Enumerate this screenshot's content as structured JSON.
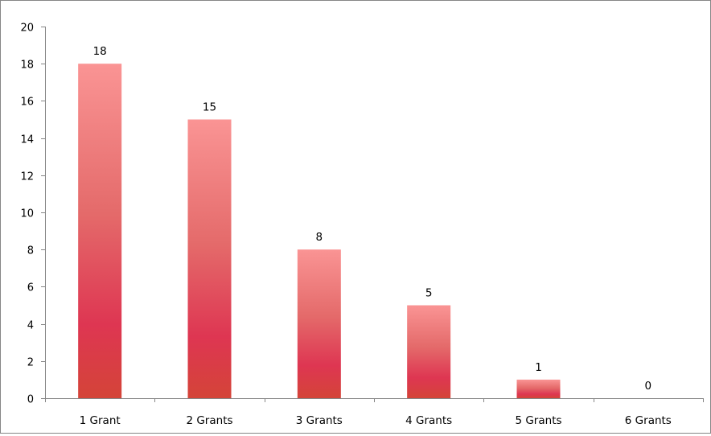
{
  "chart_data": {
    "type": "bar",
    "categories": [
      "1 Grant",
      "2 Grants",
      "3 Grants",
      "4 Grants",
      "5 Grants",
      "6 Grants"
    ],
    "values": [
      18,
      15,
      8,
      5,
      1,
      0
    ],
    "data_labels": [
      "18",
      "15",
      "8",
      "5",
      "1",
      "0"
    ],
    "title": "",
    "xlabel": "",
    "ylabel": "",
    "ylim": [
      0,
      20
    ],
    "y_ticks": [
      0,
      2,
      4,
      6,
      8,
      10,
      12,
      14,
      16,
      18,
      20
    ],
    "y_tick_labels": [
      "0",
      "2",
      "4",
      "6",
      "8",
      "10",
      "12",
      "14",
      "16",
      "18",
      "20"
    ],
    "grid": false,
    "legend": "none",
    "colors": {
      "bar_top": "#fa9494",
      "bar_mid": "#e46a6a",
      "bar_low": "#de3652",
      "bar_bottom": "#d44438",
      "axis": "#868686"
    }
  }
}
